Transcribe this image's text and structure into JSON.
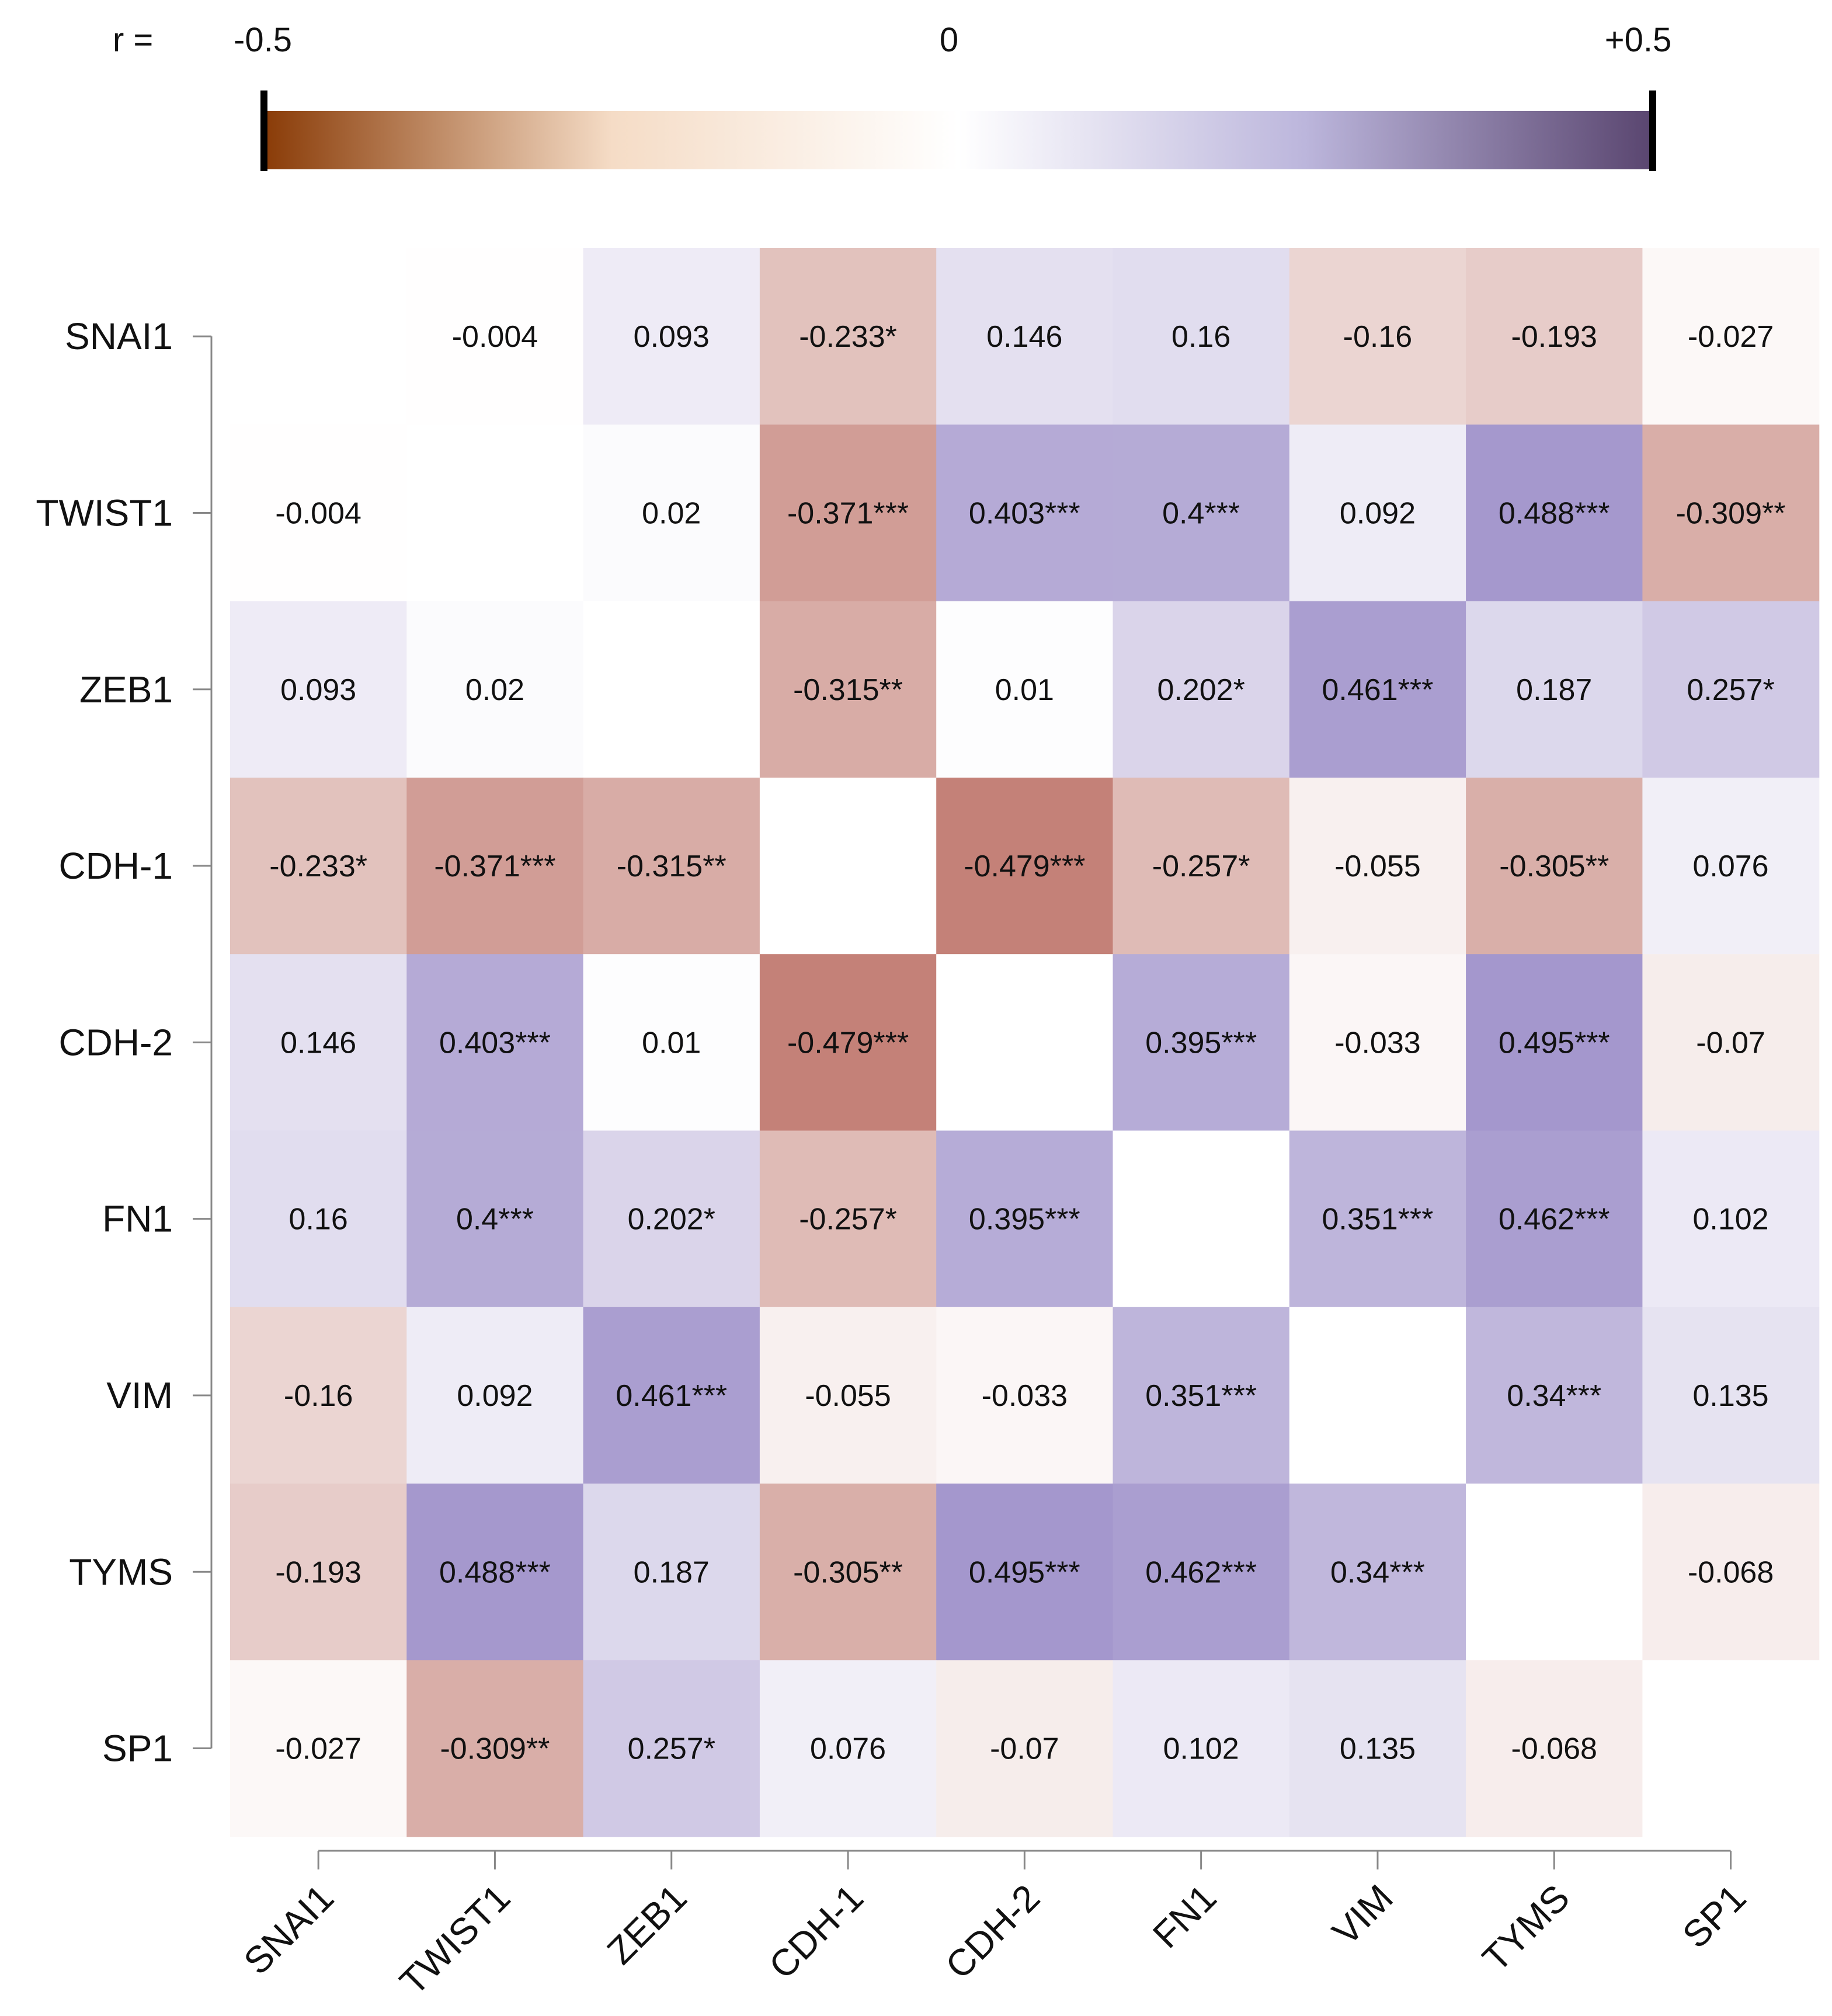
{
  "chart_data": {
    "type": "heatmap",
    "title": "",
    "legend": {
      "prefix": "r =",
      "min_label": "-0.5",
      "mid_label": "0",
      "max_label": "+0.5",
      "range": [
        -0.5,
        0.5
      ],
      "placement": "top"
    },
    "row_labels": [
      "SNAI1",
      "TWIST1",
      "ZEB1",
      "CDH-1",
      "CDH-2",
      "FN1",
      "VIM",
      "TYMS",
      "SP1"
    ],
    "col_labels": [
      "SNAI1",
      "TWIST1",
      "ZEB1",
      "CDH-1",
      "CDH-2",
      "FN1",
      "VIM",
      "TYMS",
      "SP1"
    ],
    "values": [
      [
        null,
        -0.004,
        0.093,
        -0.233,
        0.146,
        0.16,
        -0.16,
        -0.193,
        -0.027
      ],
      [
        -0.004,
        null,
        0.02,
        -0.371,
        0.403,
        0.4,
        0.092,
        0.488,
        -0.309
      ],
      [
        0.093,
        0.02,
        null,
        -0.315,
        0.01,
        0.202,
        0.461,
        0.187,
        0.257
      ],
      [
        -0.233,
        -0.371,
        -0.315,
        null,
        -0.479,
        -0.257,
        -0.055,
        -0.305,
        0.076
      ],
      [
        0.146,
        0.403,
        0.01,
        -0.479,
        null,
        0.395,
        -0.033,
        0.495,
        -0.07
      ],
      [
        0.16,
        0.4,
        0.202,
        -0.257,
        0.395,
        null,
        0.351,
        0.462,
        0.102
      ],
      [
        -0.16,
        0.092,
        0.461,
        -0.055,
        -0.033,
        0.351,
        null,
        0.34,
        0.135
      ],
      [
        -0.193,
        0.488,
        0.187,
        -0.305,
        0.495,
        0.462,
        0.34,
        null,
        -0.068
      ],
      [
        -0.027,
        -0.309,
        0.257,
        0.076,
        -0.07,
        0.102,
        0.135,
        -0.068,
        null
      ]
    ],
    "cell_labels": [
      [
        "",
        "-0.004",
        "0.093",
        "-0.233*",
        "0.146",
        "0.16",
        "-0.16",
        "-0.193",
        "-0.027"
      ],
      [
        "-0.004",
        "",
        "0.02",
        "-0.371***",
        "0.403***",
        "0.4***",
        "0.092",
        "0.488***",
        "-0.309**"
      ],
      [
        "0.093",
        "0.02",
        "",
        "-0.315**",
        "0.01",
        "0.202*",
        "0.461***",
        "0.187",
        "0.257*"
      ],
      [
        "-0.233*",
        "-0.371***",
        "-0.315**",
        "",
        "-0.479***",
        "-0.257*",
        "-0.055",
        "-0.305**",
        "0.076"
      ],
      [
        "0.146",
        "0.403***",
        "0.01",
        "-0.479***",
        "",
        "0.395***",
        "-0.033",
        "0.495***",
        "-0.07"
      ],
      [
        "0.16",
        "0.4***",
        "0.202*",
        "-0.257*",
        "0.395***",
        "",
        "0.351***",
        "0.462***",
        "0.102"
      ],
      [
        "-0.16",
        "0.092",
        "0.461***",
        "-0.055",
        "-0.033",
        "0.351***",
        "",
        "0.34***",
        "0.135"
      ],
      [
        "-0.193",
        "0.488***",
        "0.187",
        "-0.305**",
        "0.495***",
        "0.462***",
        "0.34***",
        "",
        "-0.068"
      ],
      [
        "-0.027",
        "-0.309**",
        "0.257*",
        "0.076",
        "-0.07",
        "0.102",
        "0.135",
        "-0.068",
        ""
      ]
    ],
    "colors": {
      "colorbar_stops": [
        "#8a3c08",
        "#f5dcc6",
        "#ffffff",
        "#bcb6dc",
        "#5a4670"
      ],
      "negative_cell": "#b0564a",
      "positive_cell": "#6a55ad",
      "background": "#ffffff",
      "text": "#111111",
      "axis": "#888888"
    }
  }
}
